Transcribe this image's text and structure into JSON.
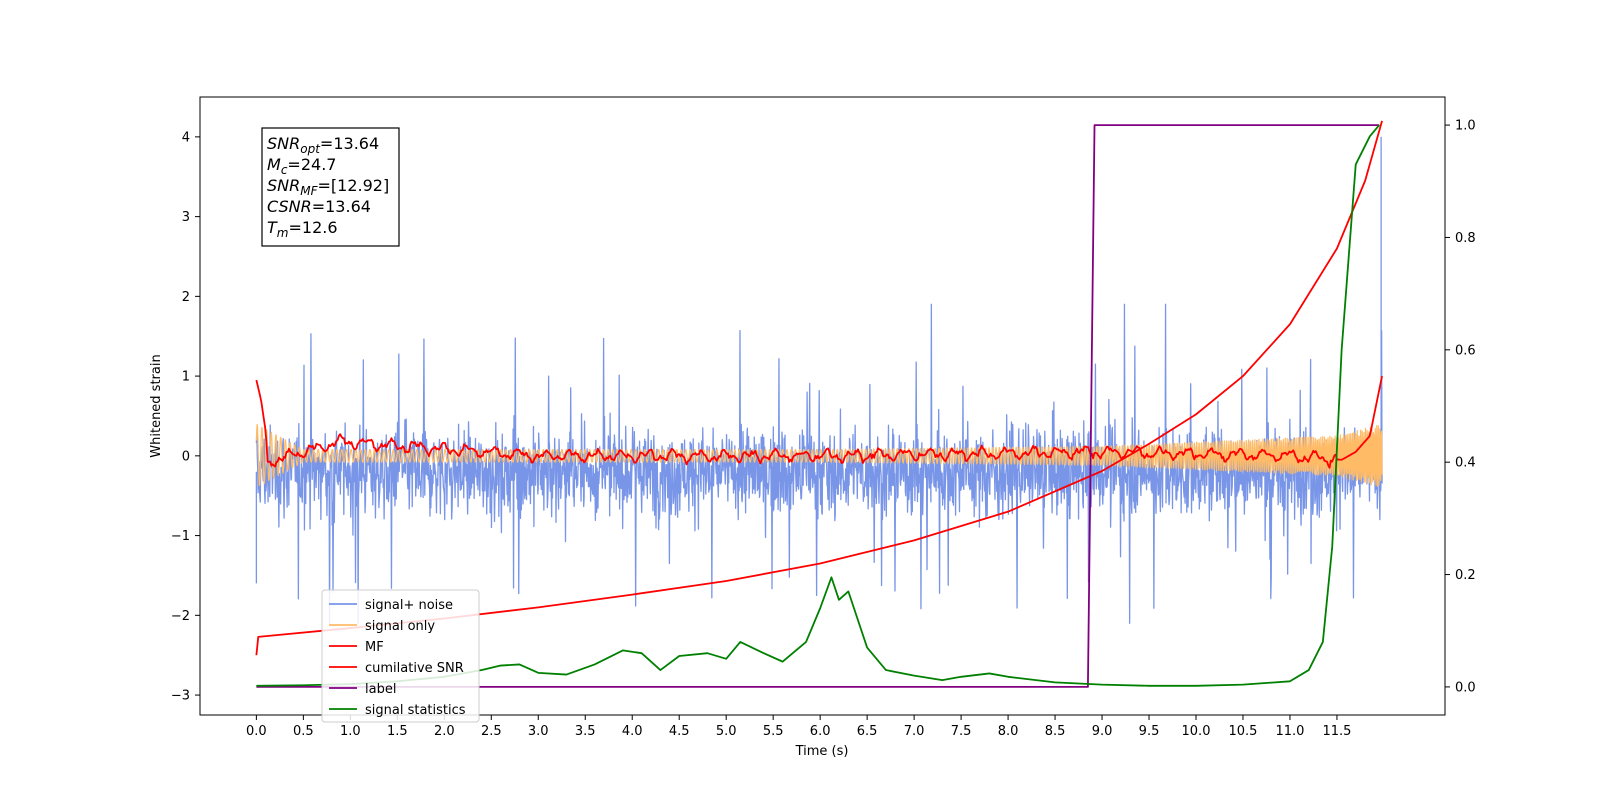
{
  "chart_data": {
    "type": "line",
    "title": "",
    "xlabel": "Time (s)",
    "ylabel": "Whitened strain",
    "y2label": "",
    "xlim": [
      -0.6,
      12.65
    ],
    "ylim": [
      -3.25,
      4.5
    ],
    "y2lim": [
      -0.05,
      1.05
    ],
    "x_ticks": [
      "0.0",
      "0.5",
      "1.0",
      "1.5",
      "2.0",
      "2.5",
      "3.0",
      "3.5",
      "4.0",
      "4.5",
      "5.0",
      "5.5",
      "6.0",
      "6.5",
      "7.0",
      "7.5",
      "8.0",
      "8.5",
      "9.0",
      "9.5",
      "10.0",
      "10.5",
      "11.0",
      "11.5"
    ],
    "y_ticks": [
      "4",
      "3",
      "2",
      "1",
      "0",
      "−1",
      "−2",
      "−3"
    ],
    "y2_ticks": [
      "1.0",
      "0.8",
      "0.6",
      "0.4",
      "0.2",
      "0.0"
    ],
    "grid": false,
    "legend_position": "lower-left",
    "annotation": {
      "lines": [
        {
          "symbol": "SNR",
          "sub": "opt",
          "value": "=13.64"
        },
        {
          "symbol": "M",
          "sub": "c",
          "value": "=24.7"
        },
        {
          "symbol": "SNR",
          "sub": "MF",
          "value": "=[12.92]"
        },
        {
          "symbol": "CSNR",
          "sub": "",
          "value": "=13.64"
        },
        {
          "symbol": "T",
          "sub": "m",
          "value": "=12.6"
        }
      ]
    },
    "series": [
      {
        "name": "signal+ noise",
        "color": "#7895e8",
        "axis": "left",
        "style": "noise",
        "x_range": [
          0.0,
          11.98
        ],
        "mean": -0.2,
        "amplitude_envelope": [
          [
            0.0,
            1.9
          ],
          [
            11.98,
            1.9
          ]
        ],
        "spikes": [
          {
            "x": 11.97,
            "y": 4.0
          },
          {
            "x": 0.0,
            "y": -1.6
          }
        ]
      },
      {
        "name": "signal only",
        "color": "#ffbb66",
        "axis": "left",
        "style": "chirp",
        "x_range": [
          0.0,
          11.98
        ],
        "amplitude_envelope": [
          [
            0.0,
            0.4
          ],
          [
            0.5,
            0.08
          ],
          [
            6.0,
            0.08
          ],
          [
            9.0,
            0.12
          ],
          [
            11.5,
            0.25
          ],
          [
            11.98,
            0.4
          ]
        ]
      },
      {
        "name": "MF",
        "color": "#ff0000",
        "axis": "left",
        "style": "mf",
        "points": [
          [
            0.0,
            0.95
          ],
          [
            0.05,
            0.7
          ],
          [
            0.1,
            0.3
          ],
          [
            0.12,
            -0.08
          ],
          [
            0.9,
            0.18
          ],
          [
            3.0,
            0.0
          ],
          [
            6.0,
            0.0
          ],
          [
            9.0,
            0.05
          ],
          [
            11.0,
            0.0
          ],
          [
            11.55,
            -0.05
          ],
          [
            11.7,
            0.05
          ],
          [
            11.85,
            0.25
          ],
          [
            11.98,
            1.0
          ]
        ]
      },
      {
        "name": "cumilative SNR",
        "color": "#ff0000",
        "axis": "left",
        "points": [
          [
            0.0,
            -2.5
          ],
          [
            0.02,
            -2.27
          ],
          [
            1.0,
            -2.16
          ],
          [
            2.0,
            -2.04
          ],
          [
            3.0,
            -1.9
          ],
          [
            4.0,
            -1.74
          ],
          [
            5.0,
            -1.57
          ],
          [
            6.0,
            -1.35
          ],
          [
            7.0,
            -1.06
          ],
          [
            8.0,
            -0.7
          ],
          [
            9.0,
            -0.19
          ],
          [
            9.5,
            0.15
          ],
          [
            10.0,
            0.52
          ],
          [
            10.5,
            1.0
          ],
          [
            11.0,
            1.65
          ],
          [
            11.5,
            2.6
          ],
          [
            11.8,
            3.45
          ],
          [
            11.98,
            4.2
          ]
        ]
      },
      {
        "name": "label",
        "color": "#800080",
        "axis": "right",
        "points": [
          [
            0.0,
            0.0
          ],
          [
            8.85,
            0.0
          ],
          [
            8.85,
            0.005
          ],
          [
            8.92,
            1.0
          ],
          [
            11.95,
            1.0
          ]
        ]
      },
      {
        "name": "signal statistics",
        "color": "#008000",
        "axis": "right",
        "points": [
          [
            0.0,
            0.002
          ],
          [
            0.5,
            0.003
          ],
          [
            1.0,
            0.005
          ],
          [
            1.5,
            0.01
          ],
          [
            2.0,
            0.018
          ],
          [
            2.4,
            0.03
          ],
          [
            2.6,
            0.038
          ],
          [
            2.8,
            0.04
          ],
          [
            3.0,
            0.025
          ],
          [
            3.3,
            0.022
          ],
          [
            3.6,
            0.04
          ],
          [
            3.9,
            0.065
          ],
          [
            4.1,
            0.06
          ],
          [
            4.3,
            0.03
          ],
          [
            4.5,
            0.055
          ],
          [
            4.8,
            0.06
          ],
          [
            5.0,
            0.05
          ],
          [
            5.15,
            0.08
          ],
          [
            5.4,
            0.06
          ],
          [
            5.6,
            0.045
          ],
          [
            5.85,
            0.08
          ],
          [
            6.0,
            0.14
          ],
          [
            6.12,
            0.195
          ],
          [
            6.2,
            0.155
          ],
          [
            6.3,
            0.17
          ],
          [
            6.5,
            0.07
          ],
          [
            6.7,
            0.03
          ],
          [
            7.0,
            0.02
          ],
          [
            7.3,
            0.012
          ],
          [
            7.5,
            0.018
          ],
          [
            7.8,
            0.024
          ],
          [
            8.0,
            0.018
          ],
          [
            8.5,
            0.008
          ],
          [
            9.0,
            0.004
          ],
          [
            9.5,
            0.002
          ],
          [
            10.0,
            0.002
          ],
          [
            10.5,
            0.004
          ],
          [
            11.0,
            0.01
          ],
          [
            11.2,
            0.03
          ],
          [
            11.35,
            0.08
          ],
          [
            11.45,
            0.25
          ],
          [
            11.55,
            0.6
          ],
          [
            11.7,
            0.93
          ],
          [
            11.85,
            0.98
          ],
          [
            11.95,
            1.0
          ]
        ]
      }
    ]
  }
}
